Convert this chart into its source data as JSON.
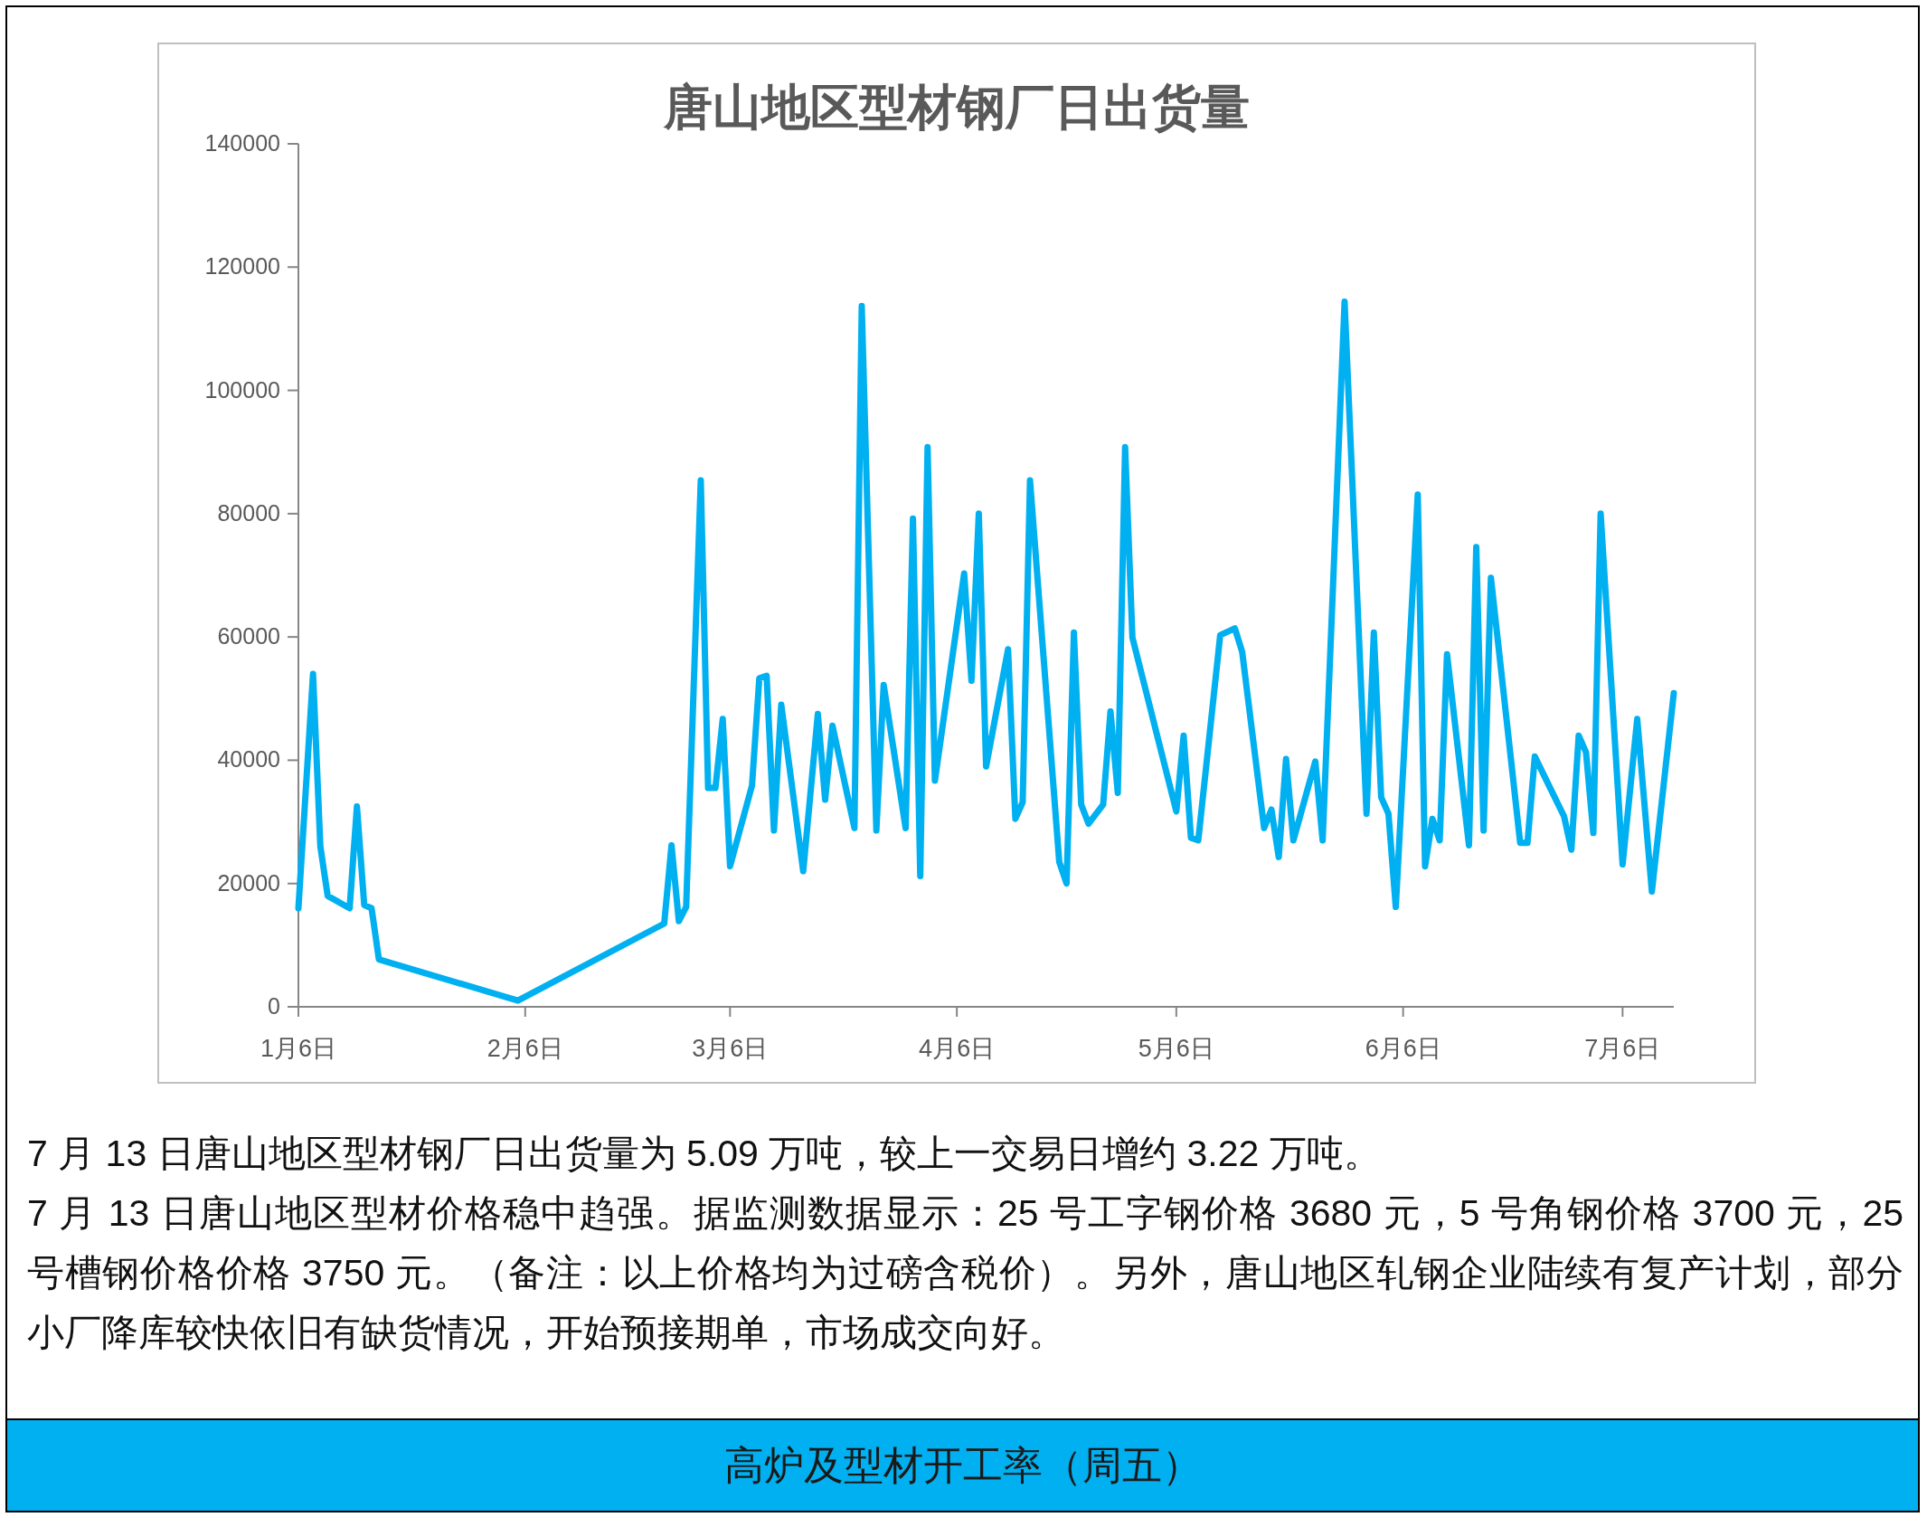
{
  "chart_data": {
    "type": "line",
    "title": "唐山地区型材钢厂日出货量",
    "x": [
      "--01-06",
      "--01-08",
      "--01-09",
      "--01-10",
      "--01-13",
      "--01-14",
      "--01-15",
      "--01-16",
      "--01-17",
      "--02-05",
      "--02-25",
      "--02-26",
      "--02-27",
      "--02-28",
      "--03-02",
      "--03-03",
      "--03-04",
      "--03-05",
      "--03-06",
      "--03-09",
      "--03-10",
      "--03-11",
      "--03-12",
      "--03-13",
      "--03-16",
      "--03-18",
      "--03-19",
      "--03-20",
      "--03-23",
      "--03-24",
      "--03-26",
      "--03-27",
      "--03-30",
      "--03-31",
      "--04-01",
      "--04-02",
      "--04-03",
      "--04-07",
      "--04-08",
      "--04-09",
      "--04-10",
      "--04-13",
      "--04-14",
      "--04-15",
      "--04-16",
      "--04-20",
      "--04-21",
      "--04-22",
      "--04-23",
      "--04-24",
      "--04-26",
      "--04-27",
      "--04-28",
      "--04-29",
      "--04-30",
      "--05-06",
      "--05-07",
      "--05-08",
      "--05-09",
      "--05-12",
      "--05-14",
      "--05-15",
      "--05-18",
      "--05-19",
      "--05-20",
      "--05-21",
      "--05-22",
      "--05-25",
      "--05-26",
      "--05-29",
      "--06-01",
      "--06-02",
      "--06-03",
      "--06-04",
      "--06-05",
      "--06-08",
      "--06-09",
      "--06-10",
      "--06-11",
      "--06-12",
      "--06-15",
      "--06-16",
      "--06-17",
      "--06-18",
      "--06-22",
      "--06-23",
      "--06-24",
      "--06-28",
      "--06-29",
      "--06-30",
      "--07-01",
      "--07-02",
      "--07-03",
      "--07-06",
      "--07-08",
      "--07-10",
      "--07-13"
    ],
    "series": [
      {
        "color": "#00b0f0",
        "values": [
          16000,
          54000,
          26000,
          18000,
          16000,
          32500,
          16500,
          16000,
          7700,
          1000,
          13500,
          26200,
          13900,
          16200,
          85400,
          35500,
          35500,
          46700,
          22800,
          35900,
          53300,
          53700,
          28600,
          49000,
          22000,
          47500,
          33600,
          45600,
          29000,
          113700,
          28600,
          52200,
          29000,
          79200,
          21200,
          90800,
          36700,
          70300,
          52900,
          80000,
          39000,
          58000,
          30500,
          33200,
          85400,
          23500,
          20000,
          60700,
          32800,
          29700,
          32800,
          47900,
          34700,
          90800,
          59900,
          31700,
          44000,
          27400,
          27000,
          60300,
          61400,
          57600,
          29000,
          32000,
          24300,
          40200,
          27000,
          39800,
          27000,
          114400,
          31300,
          60700,
          34000,
          31300,
          16200,
          83100,
          22800,
          30500,
          27000,
          57200,
          26200,
          74600,
          28600,
          69600,
          26600,
          26600,
          40600,
          30900,
          25500,
          44000,
          41300,
          28200,
          80000,
          23100,
          46700,
          18700,
          50900
        ]
      }
    ],
    "xlim": [
      "--01-06",
      "--07-13"
    ],
    "xticks": [
      {
        "value": "--01-06",
        "label": "1月6日"
      },
      {
        "value": "--02-06",
        "label": "2月6日"
      },
      {
        "value": "--03-06",
        "label": "3月6日"
      },
      {
        "value": "--04-06",
        "label": "4月6日"
      },
      {
        "value": "--05-06",
        "label": "5月6日"
      },
      {
        "value": "--06-06",
        "label": "6月6日"
      },
      {
        "value": "--07-06",
        "label": "7月6日"
      }
    ],
    "ylim": [
      0,
      140000
    ],
    "yticks": [
      0,
      20000,
      40000,
      60000,
      80000,
      100000,
      120000,
      140000
    ],
    "line_style": "solid",
    "annotations": [
      "7 月 13 日唐山地区型材钢厂日出货量为 5.09 万吨，较上一交易日增约 3.22 万吨。",
      "7 月 13 日唐山地区型材价格稳中趋强。据监测数据显示：25 号工字钢价格 3680 元，5 号角钢价格 3700 元，25 号槽钢价格价格 3750 元。（备注：以上价格均为过磅含税价）。另外，唐山地区轧钢企业陆续有复产计划，部分小厂降库较快依旧有缺货情况，开始预接期单，市场成交向好。",
      "高炉及型材开工率（周五）"
    ]
  }
}
